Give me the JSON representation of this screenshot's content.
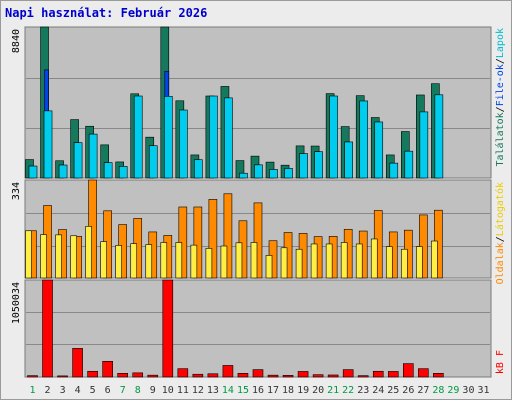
{
  "title": "Napi használat: Február 2026",
  "colors": {
    "hits": "#157a5d",
    "files": "#0044ee",
    "pages": "#00ccee",
    "visits": "#ffee44",
    "sites": "#ff8a00",
    "kbytes": "#ff0000",
    "weekend_day": "#009944",
    "weekday": "#333333",
    "panel_bg": "#c0c0c0",
    "grid": "#888888"
  },
  "right_labels": {
    "top": [
      "Találatok",
      "/",
      "File-ok",
      "/",
      "Lapok"
    ],
    "top_colors": [
      "#157a5d",
      "#000000",
      "#0044ee",
      "#000000",
      "#00bbd0"
    ],
    "mid": [
      "Oldalak",
      "/",
      "Látogatók"
    ],
    "mid_colors": [
      "#ff8a00",
      "#000000",
      "#eecc00"
    ],
    "bot": [
      "kB F"
    ],
    "bot_colors": [
      "#ff0000"
    ]
  },
  "chart_data": [
    {
      "type": "bar",
      "panel": "top",
      "y_max_label": "8840",
      "ylim": [
        0,
        8840
      ],
      "categories": [
        "1",
        "2",
        "3",
        "4",
        "5",
        "6",
        "7",
        "8",
        "9",
        "10",
        "11",
        "12",
        "13",
        "14",
        "15",
        "16",
        "17",
        "18",
        "19",
        "20",
        "21",
        "22",
        "23",
        "24",
        "25",
        "26",
        "27",
        "28",
        "29",
        "30",
        "31"
      ],
      "weekend_days": [
        "1",
        "7",
        "8",
        "14",
        "15",
        "21",
        "22",
        "28",
        "29"
      ],
      "series": [
        {
          "name": "Találatok",
          "values": [
            1080,
            8840,
            1010,
            3420,
            3030,
            1940,
            940,
            4930,
            2390,
            8840,
            4520,
            1350,
            4800,
            5360,
            1020,
            1280,
            930,
            750,
            1880,
            1870,
            4940,
            3010,
            4820,
            3540,
            1350,
            2720,
            4860,
            5520,
            0,
            0,
            0
          ]
        },
        {
          "name": "File-ok",
          "values": [
            700,
            6330,
            760,
            2070,
            2570,
            900,
            680,
            2500,
            1890,
            6250,
            2200,
            830,
            2300,
            1970,
            280,
            770,
            500,
            560,
            1430,
            1540,
            2700,
            2110,
            2520,
            1790,
            870,
            1570,
            2420,
            2700,
            0,
            0,
            0
          ]
        },
        {
          "name": "Lapok",
          "values": [
            700,
            3930,
            760,
            2070,
            2570,
            900,
            680,
            4800,
            1890,
            4780,
            3980,
            1070,
            4800,
            4690,
            280,
            770,
            500,
            560,
            1430,
            1540,
            4800,
            2110,
            4510,
            3280,
            870,
            1570,
            3870,
            4870,
            0,
            0,
            0
          ]
        }
      ]
    },
    {
      "type": "bar",
      "panel": "mid",
      "y_max_label": "334",
      "ylim": [
        0,
        334
      ],
      "series": [
        {
          "name": "Látogatók",
          "values": [
            161,
            148,
            147,
            144,
            176,
            124,
            111,
            117,
            114,
            121,
            121,
            112,
            101,
            109,
            120,
            121,
            77,
            103,
            98,
            116,
            116,
            121,
            116,
            133,
            107,
            98,
            107,
            126,
            0,
            0,
            0
          ]
        },
        {
          "name": "Oldalak",
          "values": [
            161,
            247,
            165,
            142,
            334,
            229,
            182,
            203,
            157,
            145,
            242,
            242,
            268,
            287,
            195,
            256,
            127,
            155,
            152,
            141,
            142,
            166,
            160,
            230,
            157,
            163,
            215,
            231,
            0,
            0,
            0
          ]
        }
      ]
    },
    {
      "type": "bar",
      "panel": "bot",
      "y_max_label": "1050034",
      "ylim": [
        0,
        1050034
      ],
      "series": [
        {
          "name": "kB F",
          "values": [
            15000,
            1050034,
            12000,
            310000,
            62000,
            170000,
            40000,
            45000,
            20000,
            1050034,
            90000,
            30000,
            35000,
            125000,
            40000,
            80000,
            20000,
            18000,
            60000,
            25000,
            22000,
            80000,
            15000,
            62000,
            60000,
            145000,
            90000,
            40000,
            0,
            0,
            0
          ]
        }
      ]
    }
  ]
}
